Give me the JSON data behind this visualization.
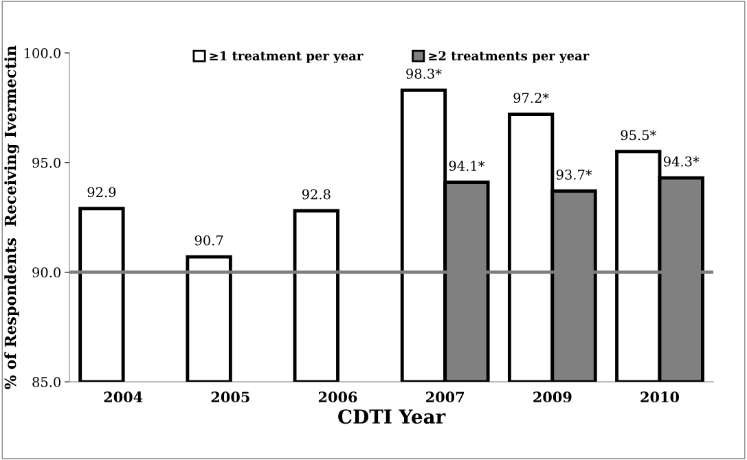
{
  "chart_data": {
    "type": "bar",
    "xlabel": "CDTI Year",
    "ylabel": "% of Respondents  Receiving Ivermectin",
    "categories": [
      "2004",
      "2005",
      "2006",
      "2007",
      "2009",
      "2010"
    ],
    "series": [
      {
        "name": "≥1 treatment per year",
        "color": "#ffffff",
        "values": [
          92.9,
          90.7,
          92.8,
          98.3,
          97.2,
          95.5
        ],
        "value_labels": [
          "92.9",
          "90.7",
          "92.8",
          "98.3*",
          "97.2*",
          "95.5*"
        ]
      },
      {
        "name": "≥2 treatments per year",
        "color": "#808080",
        "values": [
          null,
          null,
          null,
          94.1,
          93.7,
          94.3
        ],
        "value_labels": [
          null,
          null,
          null,
          "94.1*",
          "93.7*",
          "94.3*"
        ]
      }
    ],
    "ylim": [
      85,
      100
    ],
    "yticks": [
      {
        "value": 85,
        "label": "85.0"
      },
      {
        "value": 90,
        "label": "90.0"
      },
      {
        "value": 95,
        "label": "95.0"
      },
      {
        "value": 100,
        "label": "100.0"
      }
    ],
    "ref_lines": [
      {
        "axis": "y",
        "value": 90,
        "label": null,
        "color": "#7f7f7f"
      }
    ],
    "grid": false,
    "legend": "top"
  }
}
